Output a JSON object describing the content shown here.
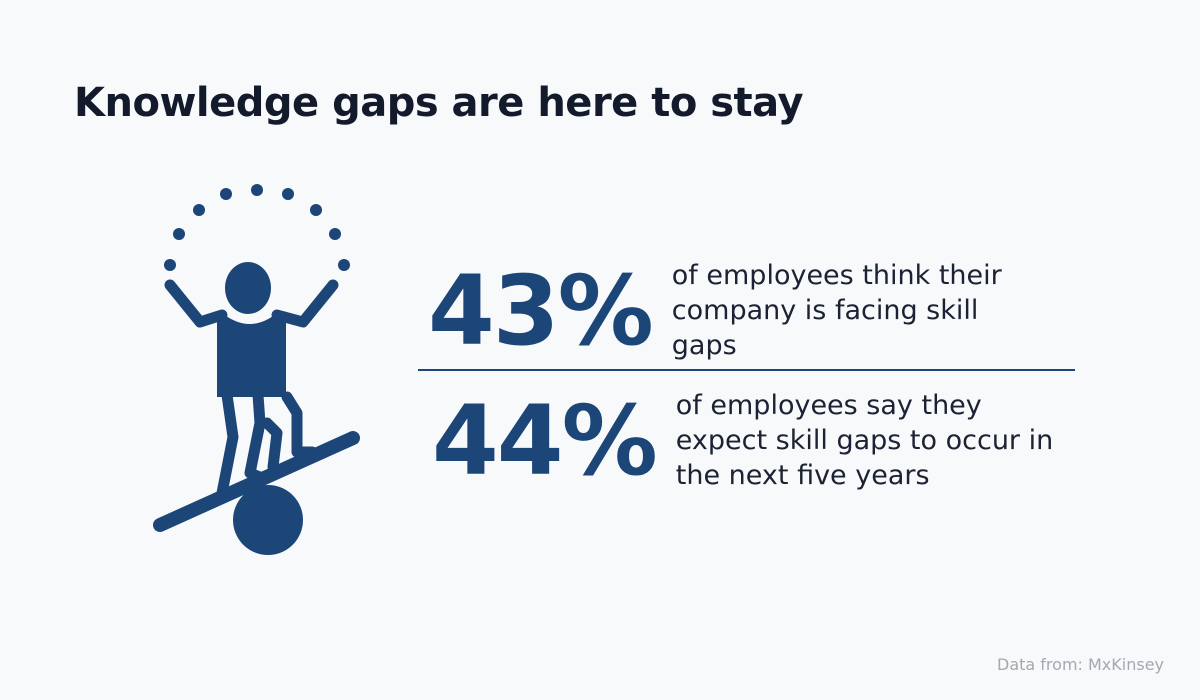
{
  "title": "Knowledge gaps are here to stay",
  "icon": "juggler-balancing-icon",
  "accent_color": "#1b4677",
  "stats": [
    {
      "value": "43%",
      "text": "of employees think their company is facing skill gaps"
    },
    {
      "value": "44%",
      "text": "of employees say they expect skill gaps to occur in the next five years"
    }
  ],
  "source": "Data from: MxKinsey"
}
